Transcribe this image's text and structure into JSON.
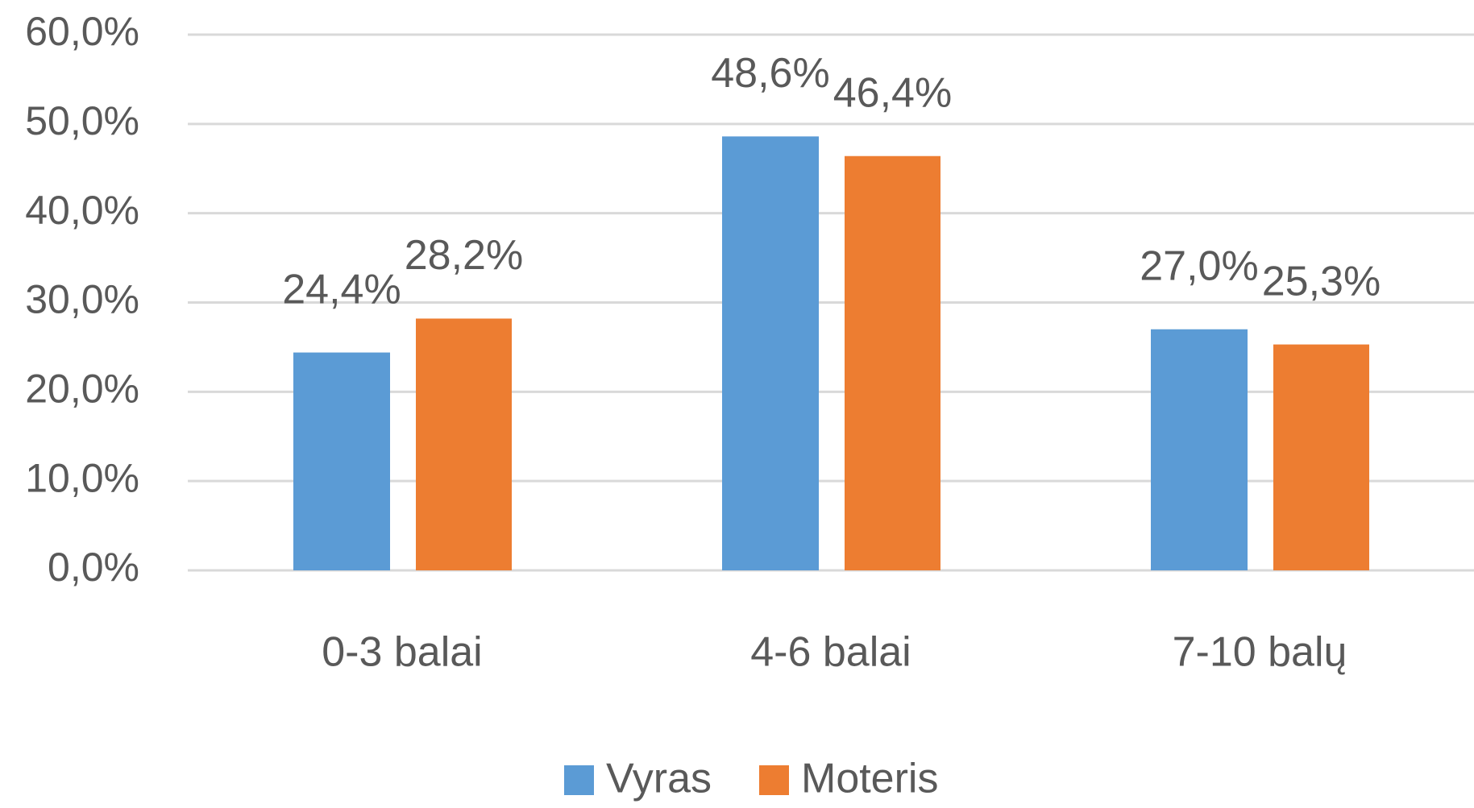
{
  "chart_data": {
    "type": "bar",
    "categories": [
      "0-3 balai",
      "4-6 balai",
      "7-10 balų"
    ],
    "series": [
      {
        "name": "Vyras",
        "color": "#5b9bd5",
        "values": [
          24.4,
          48.6,
          27.0
        ],
        "value_labels": [
          "24,4%",
          "48,6%",
          "27,0%"
        ]
      },
      {
        "name": "Moteris",
        "color": "#ed7d31",
        "values": [
          28.2,
          46.4,
          25.3
        ],
        "value_labels": [
          "28,2%",
          "46,4%",
          "25,3%"
        ]
      }
    ],
    "ylim": [
      0,
      60
    ],
    "yticks": [
      {
        "value": 0,
        "label": "0,0%"
      },
      {
        "value": 10,
        "label": "10,0%"
      },
      {
        "value": 20,
        "label": "20,0%"
      },
      {
        "value": 30,
        "label": "30,0%"
      },
      {
        "value": 40,
        "label": "40,0%"
      },
      {
        "value": 50,
        "label": "50,0%"
      },
      {
        "value": 60,
        "label": "60,0%"
      }
    ],
    "grid": true,
    "legend": "bottom"
  }
}
